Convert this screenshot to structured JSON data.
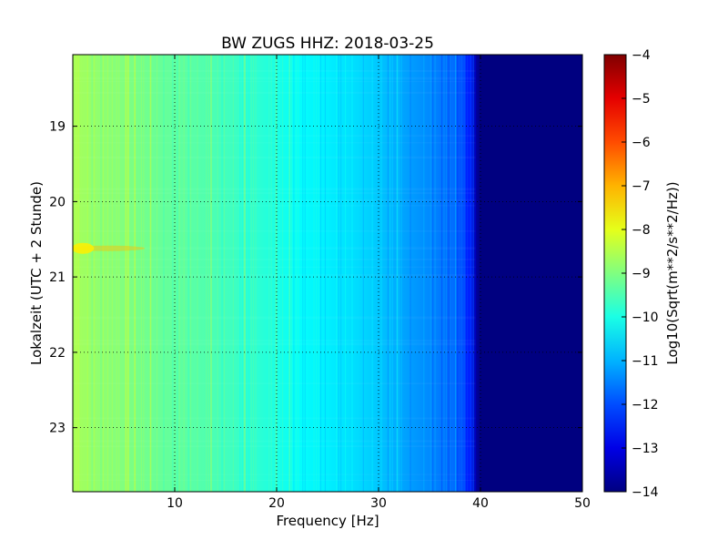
{
  "chart_data": {
    "type": "heatmap",
    "title": "BW ZUGS HHZ: 2018-03-25",
    "xlabel": "Frequency [Hz]",
    "ylabel": "Lokalzeit (UTC + 2 Stunde)",
    "xlim": [
      0,
      50
    ],
    "ylim": [
      18.05,
      23.85
    ],
    "y_inverted": true,
    "x_ticks": [
      10,
      20,
      30,
      40,
      50
    ],
    "y_ticks": [
      19,
      20,
      21,
      22,
      23
    ],
    "grid": true,
    "colorbar": {
      "label": "Log10(Sqrt(m**2/s**2/Hz))",
      "range": [
        -14,
        -4
      ],
      "ticks": [
        -4,
        -5,
        -6,
        -7,
        -8,
        -9,
        -10,
        -11,
        -12,
        -13,
        -14
      ],
      "colormap": "jet"
    },
    "frequency_profile": {
      "frequency_hz": [
        0,
        2,
        5,
        8,
        10,
        12,
        15,
        18,
        20,
        22,
        25,
        28,
        30,
        32,
        35,
        37,
        38,
        39,
        39.5,
        40,
        45,
        50
      ],
      "log_amplitude": [
        -8.6,
        -8.8,
        -9.0,
        -9.2,
        -9.3,
        -9.4,
        -9.6,
        -9.8,
        -10.0,
        -10.2,
        -10.4,
        -10.6,
        -10.8,
        -11.1,
        -11.4,
        -11.7,
        -11.9,
        -12.4,
        -13.6,
        -14.0,
        -14.0,
        -14.0
      ]
    },
    "annotations": [
      {
        "frequency_hz": 1.0,
        "time": 20.62,
        "log_amplitude": -7.6
      }
    ]
  }
}
